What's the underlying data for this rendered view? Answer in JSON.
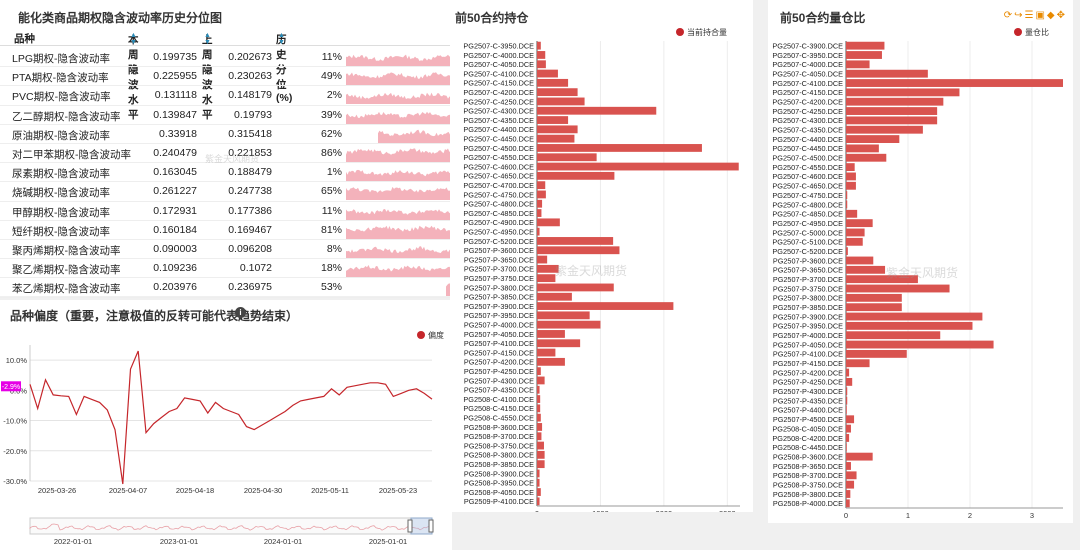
{
  "vol_table": {
    "title": "能化类商品期权隐含波动率历史分位图",
    "headers": {
      "name": "品种",
      "cur": "本周隐波水平",
      "prev": "上周隐波水平",
      "pct": "历史分位(%)"
    },
    "rows": [
      {
        "name": "LPG期权-隐含波动率",
        "cur": "0.199735",
        "prev": "0.202673",
        "pct": "11%",
        "level": 11
      },
      {
        "name": "PTA期权-隐含波动率",
        "cur": "0.225955",
        "prev": "0.230263",
        "pct": "49%",
        "level": 49
      },
      {
        "name": "PVC期权-隐含波动率",
        "cur": "0.131118",
        "prev": "0.148179",
        "pct": "2%",
        "level": 2
      },
      {
        "name": "乙二醇期权-隐含波动率",
        "cur": "0.139847",
        "prev": "0.19793",
        "pct": "39%",
        "level": 39
      },
      {
        "name": "原油期权-隐含波动率",
        "cur": "0.33918",
        "prev": "0.315418",
        "pct": "62%",
        "level": 62
      },
      {
        "name": "对二甲苯期权-隐含波动率",
        "cur": "0.240479",
        "prev": "0.221853",
        "pct": "86%",
        "level": 86
      },
      {
        "name": "尿素期权-隐含波动率",
        "cur": "0.163045",
        "prev": "0.188479",
        "pct": "1%",
        "level": 1
      },
      {
        "name": "烧碱期权-隐含波动率",
        "cur": "0.261227",
        "prev": "0.247738",
        "pct": "65%",
        "level": 65
      },
      {
        "name": "甲醇期权-隐含波动率",
        "cur": "0.172931",
        "prev": "0.177386",
        "pct": "11%",
        "level": 11
      },
      {
        "name": "短纤期权-隐含波动率",
        "cur": "0.160184",
        "prev": "0.169467",
        "pct": "81%",
        "level": 81
      },
      {
        "name": "聚丙烯期权-隐含波动率",
        "cur": "0.090003",
        "prev": "0.096208",
        "pct": "8%",
        "level": 8
      },
      {
        "name": "聚乙烯期权-隐含波动率",
        "cur": "0.109236",
        "prev": "0.1072",
        "pct": "18%",
        "level": 18
      },
      {
        "name": "苯乙烯期权-隐含波动率",
        "cur": "0.203976",
        "prev": "0.236975",
        "pct": "53%",
        "level": 53
      }
    ],
    "watermark": "紫金天风期货"
  },
  "bias": {
    "title": "品种偏度（重要，注意极值的反转可能代表趋势结束）",
    "legend": "偏度",
    "current_label": "-2.9%",
    "color": "#c5262b"
  },
  "positions": {
    "title": "前50合约持仓",
    "legend": "当前持合量",
    "watermark": "紫金天风期货",
    "color": "#d9534f"
  },
  "ratio": {
    "title": "前50合约量仓比",
    "legend": "量仓比",
    "watermark": "紫金天风期货",
    "color": "#d9534f"
  },
  "chart_data": [
    {
      "type": "line",
      "series": [
        {
          "name": "偏度",
          "values": [
            2.0,
            -6.0,
            3.5,
            -1.5,
            -1.8,
            -2.0,
            -8.0,
            -2.0,
            -3.0,
            -4.0,
            -6.5,
            -13.0,
            -31.0,
            7.0,
            13.0,
            -14.0,
            -11.0,
            -9.0,
            -7.0,
            -6.0,
            -2.5,
            -3.0,
            -3.5,
            -7.5,
            -4.0,
            -6.0,
            -7.0,
            -8.0,
            -12.0,
            -13.0,
            -11.5,
            -10.0,
            -8.5,
            -7.0,
            -5.0,
            -3.5,
            -3.0,
            -2.5,
            -2.0,
            0.5,
            -1.5,
            1.0,
            1.5,
            2.0,
            2.5,
            2.5,
            2.0,
            -2.0,
            -1.0,
            0.0,
            0.5,
            -1.0,
            -2.9
          ]
        }
      ],
      "x_ticks": [
        "2025-03-26",
        "2025-04-07",
        "2025-04-18",
        "2025-04-30",
        "2025-05-11",
        "2025-05-23"
      ],
      "y_ticks": [
        "10.0%",
        "0.0%",
        "-10.0%",
        "-20.0%",
        "-30.0%"
      ],
      "ylim": [
        -30,
        15
      ],
      "overview_ticks": [
        "2022-01-01",
        "2023-01-01",
        "2024-01-01",
        "2025-01-01"
      ]
    },
    {
      "type": "bar",
      "title": "前50合约持仓",
      "categories": [
        "PG2507-C-3950.DCE",
        "PG2507-C-4000.DCE",
        "PG2507-C-4050.DCE",
        "PG2507-C-4100.DCE",
        "PG2507-C-4150.DCE",
        "PG2507-C-4200.DCE",
        "PG2507-C-4250.DCE",
        "PG2507-C-4300.DCE",
        "PG2507-C-4350.DCE",
        "PG2507-C-4400.DCE",
        "PG2507-C-4450.DCE",
        "PG2507-C-4500.DCE",
        "PG2507-C-4550.DCE",
        "PG2507-C-4600.DCE",
        "PG2507-C-4650.DCE",
        "PG2507-C-4700.DCE",
        "PG2507-C-4750.DCE",
        "PG2507-C-4800.DCE",
        "PG2507-C-4850.DCE",
        "PG2507-C-4900.DCE",
        "PG2507-C-4950.DCE",
        "PG2507-C-5200.DCE",
        "PG2507-P-3600.DCE",
        "PG2507-P-3650.DCE",
        "PG2507-P-3700.DCE",
        "PG2507-P-3750.DCE",
        "PG2507-P-3800.DCE",
        "PG2507-P-3850.DCE",
        "PG2507-P-3900.DCE",
        "PG2507-P-3950.DCE",
        "PG2507-P-4000.DCE",
        "PG2507-P-4050.DCE",
        "PG2507-P-4100.DCE",
        "PG2507-P-4150.DCE",
        "PG2507-P-4200.DCE",
        "PG2507-P-4250.DCE",
        "PG2507-P-4300.DCE",
        "PG2507-P-4350.DCE",
        "PG2508-C-4100.DCE",
        "PG2508-C-4150.DCE",
        "PG2508-C-4550.DCE",
        "PG2508-P-3600.DCE",
        "PG2508-P-3700.DCE",
        "PG2508-P-3750.DCE",
        "PG2508-P-3800.DCE",
        "PG2508-P-3850.DCE",
        "PG2508-P-3900.DCE",
        "PG2508-P-3950.DCE",
        "PG2508-P-4050.DCE",
        "PG2509-P-4100.DCE"
      ],
      "values": [
        60,
        130,
        140,
        330,
        490,
        640,
        750,
        1880,
        490,
        640,
        590,
        2600,
        940,
        3180,
        1220,
        130,
        140,
        80,
        70,
        360,
        40,
        1200,
        1300,
        160,
        340,
        290,
        1210,
        550,
        2150,
        830,
        1000,
        440,
        680,
        290,
        440,
        60,
        120,
        40,
        50,
        50,
        60,
        80,
        70,
        110,
        120,
        120,
        40,
        40,
        60,
        40
      ],
      "xlim": [
        0,
        3200
      ],
      "x_ticks": [
        "0",
        "1000",
        "2000",
        "3000"
      ]
    },
    {
      "type": "bar",
      "title": "前50合约量仓比",
      "categories": [
        "PG2507-C-3900.DCE",
        "PG2507-C-3950.DCE",
        "PG2507-C-4000.DCE",
        "PG2507-C-4050.DCE",
        "PG2507-C-4100.DCE",
        "PG2507-C-4150.DCE",
        "PG2507-C-4200.DCE",
        "PG2507-C-4250.DCE",
        "PG2507-C-4300.DCE",
        "PG2507-C-4350.DCE",
        "PG2507-C-4400.DCE",
        "PG2507-C-4450.DCE",
        "PG2507-C-4500.DCE",
        "PG2507-C-4550.DCE",
        "PG2507-C-4600.DCE",
        "PG2507-C-4650.DCE",
        "PG2507-C-4750.DCE",
        "PG2507-C-4800.DCE",
        "PG2507-C-4850.DCE",
        "PG2507-C-4950.DCE",
        "PG2507-C-5000.DCE",
        "PG2507-C-5100.DCE",
        "PG2507-C-5200.DCE",
        "PG2507-P-3600.DCE",
        "PG2507-P-3650.DCE",
        "PG2507-P-3700.DCE",
        "PG2507-P-3750.DCE",
        "PG2507-P-3800.DCE",
        "PG2507-P-3850.DCE",
        "PG2507-P-3900.DCE",
        "PG2507-P-3950.DCE",
        "PG2507-P-4000.DCE",
        "PG2507-P-4050.DCE",
        "PG2507-P-4100.DCE",
        "PG2507-P-4150.DCE",
        "PG2507-P-4200.DCE",
        "PG2507-P-4250.DCE",
        "PG2507-P-4300.DCE",
        "PG2507-P-4350.DCE",
        "PG2507-P-4400.DCE",
        "PG2507-P-4500.DCE",
        "PG2508-C-4050.DCE",
        "PG2508-C-4200.DCE",
        "PG2508-C-4450.DCE",
        "PG2508-P-3600.DCE",
        "PG2508-P-3650.DCE",
        "PG2508-P-3700.DCE",
        "PG2508-P-3750.DCE",
        "PG2508-P-3800.DCE",
        "PG2508-P-4000.DCE"
      ],
      "values": [
        0.62,
        0.58,
        0.38,
        1.32,
        3.5,
        1.83,
        1.57,
        1.47,
        1.47,
        1.24,
        0.86,
        0.53,
        0.65,
        0.14,
        0.16,
        0.16,
        0.02,
        0.02,
        0.18,
        0.43,
        0.3,
        0.27,
        0.03,
        0.44,
        0.63,
        1.16,
        1.67,
        0.9,
        0.9,
        2.2,
        2.04,
        1.52,
        2.38,
        0.98,
        0.38,
        0.05,
        0.1,
        0.02,
        0.02,
        0.01,
        0.13,
        0.08,
        0.05,
        0.01,
        0.43,
        0.08,
        0.17,
        0.13,
        0.07,
        0.06
      ],
      "xlim": [
        0,
        3.5
      ],
      "x_ticks": [
        "0",
        "1",
        "2",
        "3"
      ]
    }
  ]
}
